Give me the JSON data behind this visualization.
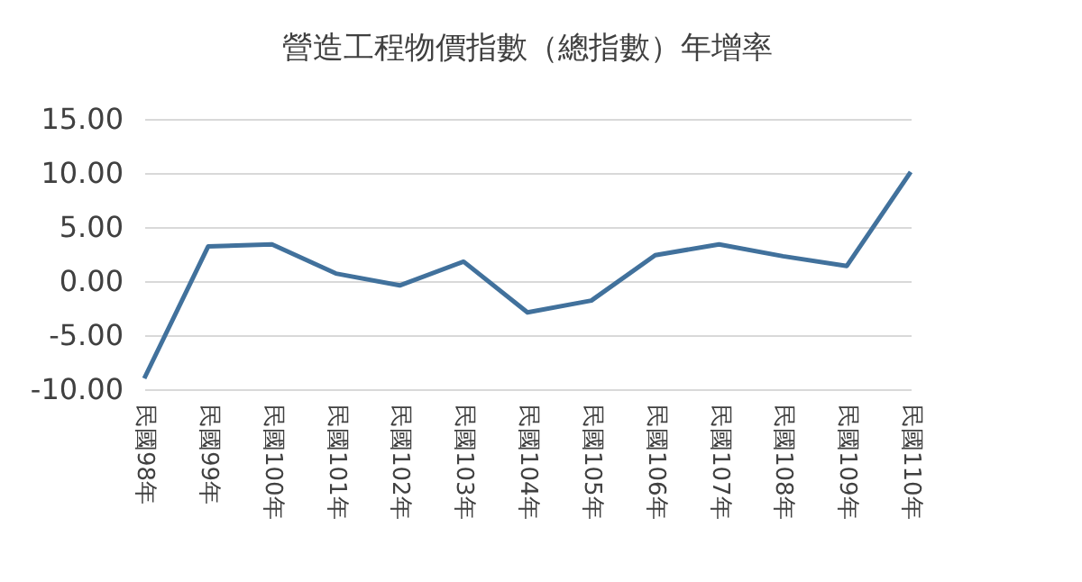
{
  "chart_data": {
    "type": "line",
    "title": "營造工程物價指數（總指數）年增率",
    "categories": [
      "民國98年",
      "民國99年",
      "民國100年",
      "民國101年",
      "民國102年",
      "民國103年",
      "民國104年",
      "民國105年",
      "民國106年",
      "民國107年",
      "民國108年",
      "民國109年",
      "民國110年"
    ],
    "series": [
      {
        "color": "#41719c",
        "values": [
          -9.0,
          3.2,
          3.4,
          0.7,
          -0.4,
          1.8,
          -2.9,
          -1.8,
          2.4,
          3.4,
          2.3,
          1.4,
          10.1
        ]
      }
    ],
    "ylim": [
      -10,
      15
    ],
    "yticks": [
      {
        "value": -10,
        "label": "-10.00"
      },
      {
        "value": -5,
        "label": "-5.00"
      },
      {
        "value": 0,
        "label": "0.00"
      },
      {
        "value": 5,
        "label": "5.00"
      },
      {
        "value": 10,
        "label": "10.00"
      },
      {
        "value": 15,
        "label": "15.00"
      }
    ],
    "grid": "y",
    "legend": false,
    "marker": "none",
    "line_style": "solid"
  }
}
